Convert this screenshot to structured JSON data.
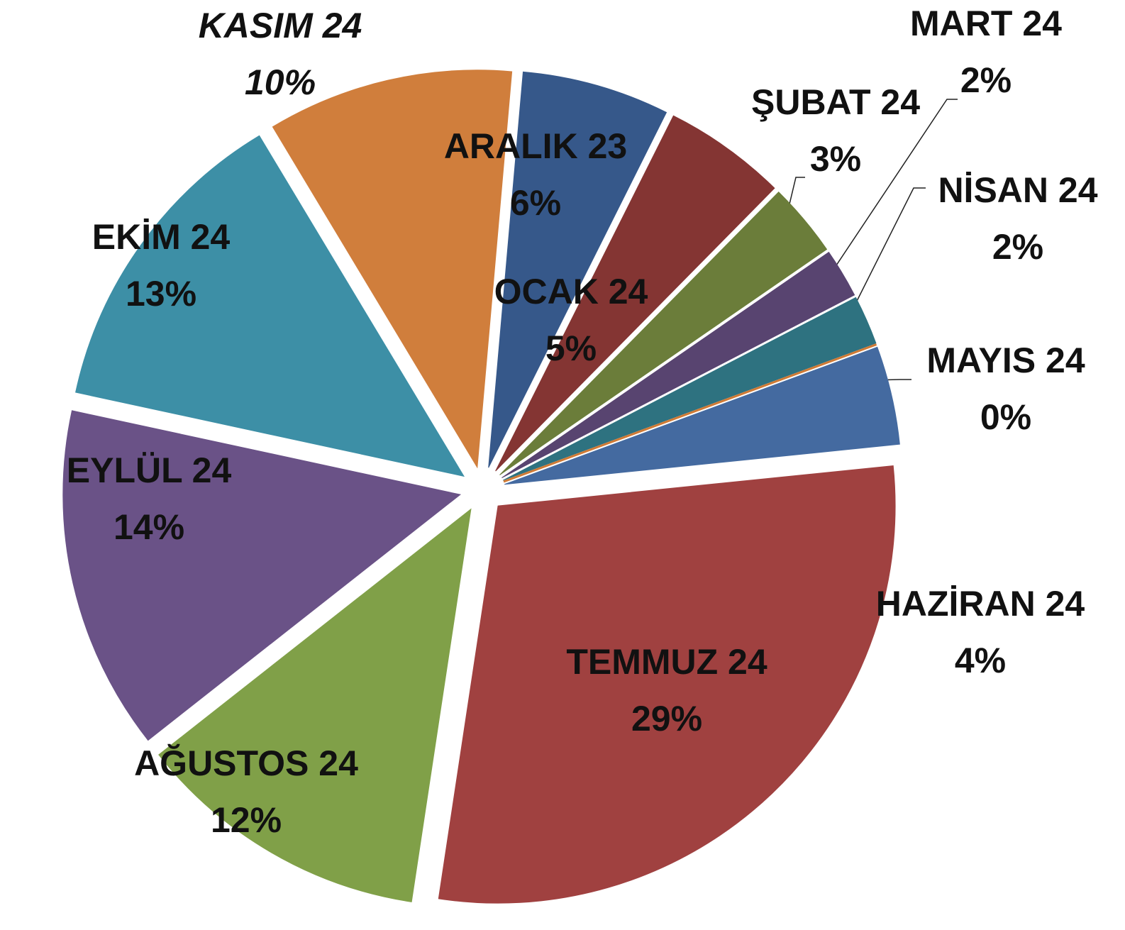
{
  "chart_data": {
    "type": "pie",
    "categories": [
      "ARALIK 23",
      "OCAK 24",
      "ŞUBAT 24",
      "MART 24",
      "NİSAN 24",
      "MAYIS 24",
      "HAZİRAN 24",
      "TEMMUZ 24",
      "AĞUSTOS 24",
      "EYLÜL 24",
      "EKİM 24",
      "KASIM 24"
    ],
    "values": [
      6,
      5,
      3,
      2,
      2,
      0,
      4,
      29,
      12,
      14,
      13,
      10
    ],
    "value_labels": [
      "6%",
      "5%",
      "3%",
      "2%",
      "2%",
      "0%",
      "4%",
      "29%",
      "12%",
      "14%",
      "13%",
      "10%"
    ],
    "colors": [
      "#36588a",
      "#843533",
      "#6b7d3a",
      "#584470",
      "#2e7280",
      "#d07a35",
      "#446aa0",
      "#a04140",
      "#80a048",
      "#6a5287",
      "#3d8fa6",
      "#d07e3c"
    ]
  }
}
